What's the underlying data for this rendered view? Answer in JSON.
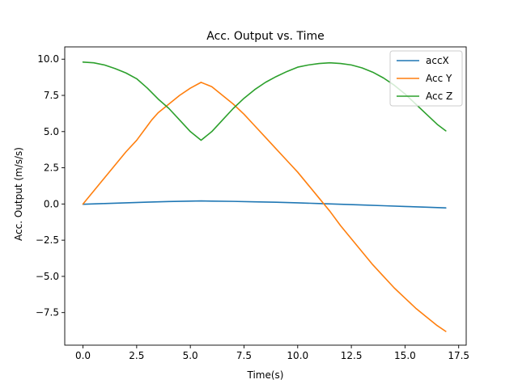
{
  "chart_data": {
    "type": "line",
    "title": "Acc. Output vs. Time",
    "xlabel": "Time(s)",
    "ylabel": "Acc. Output (m/s/s)",
    "xlim": [
      -0.85,
      17.85
    ],
    "ylim": [
      -9.75,
      10.85
    ],
    "xticks": [
      0.0,
      2.5,
      5.0,
      7.5,
      10.0,
      12.5,
      15.0,
      17.5
    ],
    "xtick_labels": [
      "0.0",
      "2.5",
      "5.0",
      "7.5",
      "10.0",
      "12.5",
      "15.0",
      "17.5"
    ],
    "yticks": [
      10.0,
      7.5,
      5.0,
      2.5,
      0.0,
      -2.5,
      -5.0,
      -7.5
    ],
    "ytick_labels": [
      "10.0",
      "7.5",
      "5.0",
      "2.5",
      "0.0",
      "−2.5",
      "−5.0",
      "−7.5"
    ],
    "grid": false,
    "legend_position": "top-right",
    "series": [
      {
        "name": "accX",
        "color": "#1f77b4",
        "x": [
          0.0,
          1.0,
          2.0,
          3.0,
          4.0,
          5.0,
          5.5,
          6.0,
          7.0,
          8.0,
          9.0,
          10.0,
          11.0,
          12.0,
          13.0,
          14.0,
          15.0,
          16.0,
          16.9
        ],
        "y": [
          -0.02,
          0.03,
          0.08,
          0.13,
          0.17,
          0.2,
          0.21,
          0.2,
          0.18,
          0.15,
          0.12,
          0.08,
          0.03,
          -0.02,
          -0.07,
          -0.12,
          -0.17,
          -0.22,
          -0.27
        ]
      },
      {
        "name": "Acc Y",
        "color": "#ff7f0e",
        "x": [
          0.0,
          0.5,
          1.0,
          1.5,
          2.0,
          2.5,
          3.0,
          3.2,
          3.5,
          4.0,
          4.5,
          5.0,
          5.5,
          6.0,
          6.5,
          7.0,
          7.5,
          8.0,
          8.5,
          9.0,
          9.5,
          10.0,
          10.5,
          11.0,
          11.5,
          12.0,
          12.5,
          13.0,
          13.5,
          14.0,
          14.5,
          15.0,
          15.5,
          16.0,
          16.5,
          16.9
        ],
        "y": [
          0.0,
          0.9,
          1.8,
          2.7,
          3.6,
          4.4,
          5.4,
          5.8,
          6.3,
          6.9,
          7.5,
          8.0,
          8.4,
          8.1,
          7.5,
          6.9,
          6.2,
          5.4,
          4.6,
          3.8,
          3.0,
          2.2,
          1.3,
          0.4,
          -0.5,
          -1.5,
          -2.4,
          -3.3,
          -4.2,
          -5.0,
          -5.8,
          -6.5,
          -7.2,
          -7.8,
          -8.4,
          -8.8
        ]
      },
      {
        "name": "Acc Z",
        "color": "#2ca02c",
        "x": [
          0.0,
          0.5,
          1.0,
          1.5,
          2.0,
          2.5,
          3.0,
          3.5,
          4.0,
          4.5,
          5.0,
          5.5,
          6.0,
          6.5,
          7.0,
          7.5,
          8.0,
          8.5,
          9.0,
          9.5,
          10.0,
          10.5,
          11.0,
          11.5,
          12.0,
          12.5,
          13.0,
          13.5,
          14.0,
          14.5,
          15.0,
          15.5,
          16.0,
          16.5,
          16.9
        ],
        "y": [
          9.8,
          9.75,
          9.6,
          9.35,
          9.05,
          8.65,
          8.0,
          7.25,
          6.6,
          5.8,
          5.0,
          4.4,
          5.0,
          5.8,
          6.6,
          7.3,
          7.9,
          8.4,
          8.8,
          9.15,
          9.45,
          9.6,
          9.7,
          9.75,
          9.7,
          9.6,
          9.4,
          9.1,
          8.7,
          8.2,
          7.6,
          6.9,
          6.2,
          5.5,
          5.05
        ]
      }
    ]
  }
}
